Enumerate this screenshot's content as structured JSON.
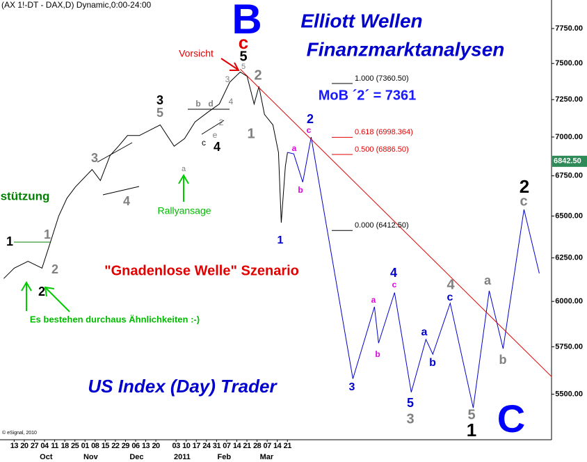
{
  "chart_data": {
    "type": "line",
    "title": "(AX 1!-DT - DAX,D) Dynamic,0:00-24:00",
    "log_scale": true,
    "xlim": [
      -1.4,
      53.1
    ],
    "ylim": [
      5270,
      7960
    ],
    "yticks": [
      {
        "value": 5500,
        "label": "5500.00"
      },
      {
        "value": 5750,
        "label": "5750.00"
      },
      {
        "value": 6000,
        "label": "6000.00"
      },
      {
        "value": 6250,
        "label": "6250.00"
      },
      {
        "value": 6500,
        "label": "6500.00"
      },
      {
        "value": 6750,
        "label": "6750.00"
      },
      {
        "value": 7000,
        "label": "7000.00"
      },
      {
        "value": 7250,
        "label": "7250.00"
      },
      {
        "value": 7500,
        "label": "7500.00"
      },
      {
        "value": 7750,
        "label": "7750.00"
      }
    ],
    "xticks": [
      {
        "value": 0,
        "label": "13"
      },
      {
        "value": 1,
        "label": "20"
      },
      {
        "value": 2,
        "label": "27"
      },
      {
        "value": 3,
        "label": "04"
      },
      {
        "value": 4,
        "label": "11"
      },
      {
        "value": 5,
        "label": "18"
      },
      {
        "value": 6,
        "label": "25"
      },
      {
        "value": 7,
        "label": "01"
      },
      {
        "value": 8,
        "label": "08"
      },
      {
        "value": 9,
        "label": "15"
      },
      {
        "value": 10,
        "label": "22"
      },
      {
        "value": 11,
        "label": "29"
      },
      {
        "value": 12,
        "label": "06"
      },
      {
        "value": 13,
        "label": "13"
      },
      {
        "value": 14,
        "label": "20"
      },
      {
        "value": 16,
        "label": "03"
      },
      {
        "value": 17,
        "label": "10"
      },
      {
        "value": 18,
        "label": "17"
      },
      {
        "value": 19,
        "label": "24"
      },
      {
        "value": 20,
        "label": "31"
      },
      {
        "value": 21,
        "label": "07"
      },
      {
        "value": 22,
        "label": "14"
      },
      {
        "value": 23,
        "label": "21"
      },
      {
        "value": 24,
        "label": "28"
      },
      {
        "value": 25,
        "label": "07"
      },
      {
        "value": 26,
        "label": "14"
      },
      {
        "value": 27,
        "label": "21"
      }
    ],
    "month_ticks": [
      {
        "value": 3.16,
        "label": "Oct"
      },
      {
        "value": 7.56,
        "label": "Nov"
      },
      {
        "value": 12.1,
        "label": "Dec"
      },
      {
        "value": 16.6,
        "label": "2011"
      },
      {
        "value": 20.75,
        "label": "Feb"
      },
      {
        "value": 24.95,
        "label": "Mar"
      }
    ],
    "series": [
      {
        "color": "#000000",
        "x": [
          -1.03,
          0,
          1.37,
          2.75,
          3.57,
          4.4,
          5.22,
          6.05,
          7.7,
          8.52,
          9.48,
          10.31,
          11.2,
          12.37,
          14.43,
          15.81,
          16.84,
          17.87,
          19.24,
          20.27,
          21.31,
          22.34,
          23.02,
          23.71,
          24.19,
          24.74,
          25.57,
          26.12,
          26.39,
          26.8,
          27.01
        ],
        "values": [
          6130,
          6190,
          6230,
          6190,
          6340,
          6500,
          6610,
          6680,
          6790,
          6720,
          6880,
          6940,
          7010,
          7010,
          7080,
          6940,
          6990,
          7100,
          7170,
          7220,
          7370,
          7440,
          7410,
          7220,
          7340,
          7150,
          7080,
          6900,
          6460,
          6810,
          6900
        ]
      },
      {
        "color": "#0000cc",
        "x": [
          27.01,
          27.63,
          28.52,
          29.35,
          33.47,
          35.6,
          36.01,
          37.59,
          39.24,
          40.69,
          41.37,
          43.09,
          45.36,
          46.94,
          48.32,
          50.38,
          51.89
        ],
        "values": [
          6900,
          6890,
          6710,
          7000,
          5580,
          5970,
          5770,
          6050,
          5510,
          5790,
          5710,
          5990,
          5430,
          6060,
          5740,
          6540,
          6160
        ]
      },
      {
        "color": "#e00000",
        "x": [
          22.34,
          53.13
        ],
        "values": [
          7460,
          5590
        ]
      }
    ],
    "price_marker": {
      "value": 6842.5,
      "label": "6842.50"
    },
    "levels": [
      {
        "value": 7360.5,
        "label": "1.000 (7360.50)",
        "color": "#000000"
      },
      {
        "value": 6998.364,
        "label": "0.618 (6998.364)",
        "color": "#e00000"
      },
      {
        "value": 6886.5,
        "label": "0.500 (6886.50)",
        "color": "#e00000"
      },
      {
        "value": 6412.5,
        "label": "0.000 (6412.50)",
        "color": "#000000"
      }
    ],
    "annotations": [
      "Elliott Wellen",
      "Finanzmarktanalysen",
      "MoB ´2´ = 7361",
      "B",
      "c",
      "5",
      "Vorsicht",
      "stützung",
      "Rallyansage",
      "\"Gnadenlose Welle\" Szenario",
      "Es bestehen durchaus Ähnlichkeiten :-)",
      "US Index (Day) Trader",
      "C",
      "© eSignal, 2010",
      "1",
      "2",
      "1",
      "2",
      "3",
      "4",
      "3",
      "5",
      "a",
      "b",
      "c",
      "d",
      "e",
      "4",
      "2",
      "3",
      "4",
      "5",
      "2",
      "1",
      "1",
      "a",
      "b",
      "2",
      "c",
      "3",
      "a",
      "b",
      "4",
      "c",
      "a",
      "b",
      "c",
      "4",
      "5",
      "3",
      "a",
      "b",
      "5",
      "1",
      "2",
      "c"
    ]
  }
}
